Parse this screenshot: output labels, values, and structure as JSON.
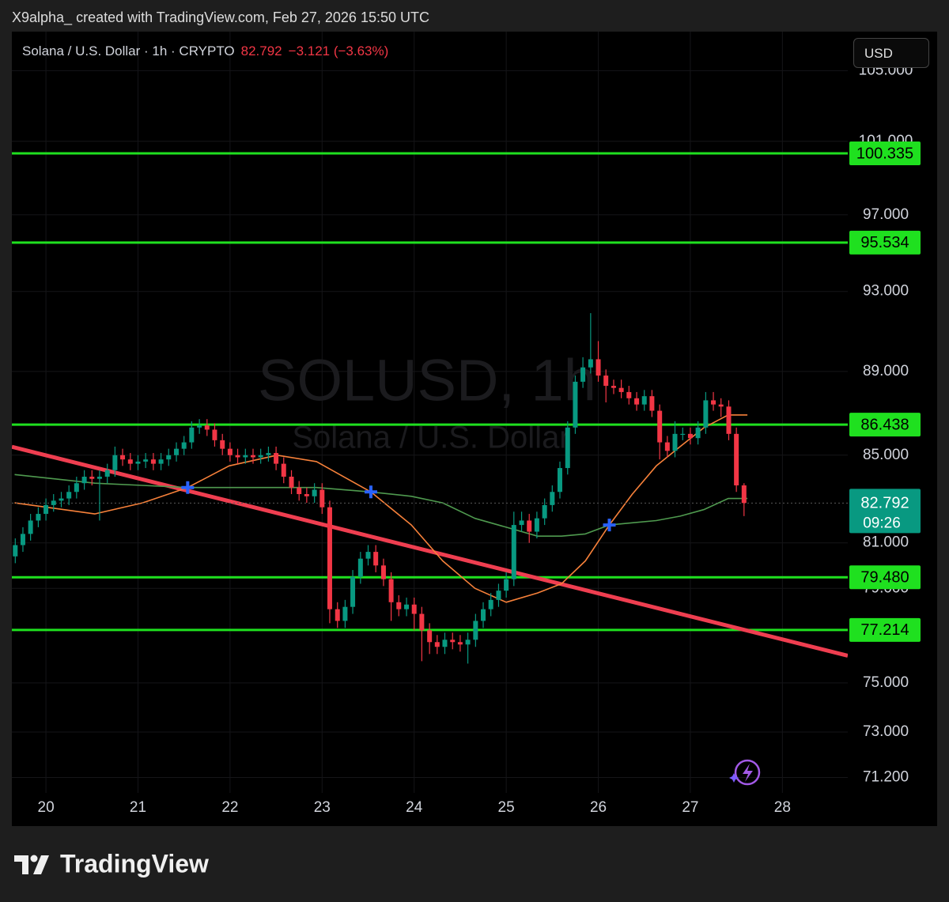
{
  "header": {
    "credit": "X9alpha_ created with TradingView.com, Feb 27, 2026 15:50 UTC"
  },
  "footer": {
    "brand": "TradingView"
  },
  "chart_data": {
    "type": "candlestick",
    "title": "Solana / U.S. Dollar · 1h · CRYPTO",
    "change_text": "−3.121 (−3.63%)",
    "currency": "USD",
    "watermark": "SOLUSD, 1h",
    "watermark_sub": "Solana / U.S. Dollar",
    "countdown": "09:26",
    "up_color": "#089981",
    "down_color": "#f23645",
    "x": [
      19.667,
      19.75,
      19.833,
      19.917,
      20,
      20.083,
      20.167,
      20.25,
      20.333,
      20.417,
      20.5,
      20.583,
      20.667,
      20.75,
      20.833,
      20.917,
      21,
      21.083,
      21.167,
      21.25,
      21.333,
      21.417,
      21.5,
      21.583,
      21.667,
      21.75,
      21.833,
      21.917,
      22,
      22.083,
      22.167,
      22.25,
      22.333,
      22.417,
      22.5,
      22.583,
      22.667,
      22.75,
      22.833,
      22.917,
      23,
      23.083,
      23.167,
      23.25,
      23.333,
      23.417,
      23.5,
      23.583,
      23.667,
      23.75,
      23.833,
      23.917,
      24,
      24.083,
      24.167,
      24.25,
      24.333,
      24.417,
      24.5,
      24.583,
      24.667,
      24.75,
      24.833,
      24.917,
      25,
      25.083,
      25.167,
      25.25,
      25.333,
      25.417,
      25.5,
      25.583,
      25.667,
      25.75,
      25.833,
      25.917,
      26,
      26.083,
      26.167,
      26.25,
      26.333,
      26.417,
      26.5,
      26.583,
      26.667,
      26.75,
      26.833,
      26.917,
      27,
      27.083,
      27.167,
      27.25,
      27.333,
      27.417,
      27.5,
      27.583
    ],
    "open": [
      80.4,
      80.9,
      81.4,
      82.0,
      82.3,
      82.7,
      82.9,
      83.0,
      83.3,
      83.7,
      84.0,
      83.9,
      84.0,
      84.3,
      85.0,
      84.8,
      84.6,
      84.7,
      84.8,
      84.6,
      84.8,
      85.0,
      85.3,
      85.6,
      86.3,
      86.4,
      86.2,
      85.7,
      85.3,
      85.0,
      84.9,
      85.0,
      84.9,
      85.0,
      85.1,
      84.6,
      84.0,
      83.5,
      83.2,
      83.1,
      83.4,
      82.6,
      78.1,
      77.6,
      78.2,
      79.5,
      80.3,
      80.6,
      80.0,
      79.4,
      78.4,
      78.1,
      78.3,
      77.9,
      77.2,
      76.7,
      76.5,
      76.8,
      76.7,
      76.6,
      76.8,
      77.6,
      78.1,
      78.5,
      78.9,
      79.4,
      81.8,
      82.0,
      81.5,
      82.1,
      82.7,
      83.3,
      84.4,
      86.3,
      88.5,
      89.2,
      89.6,
      88.8,
      88.3,
      88.2,
      88.0,
      87.7,
      87.4,
      87.8,
      87.1,
      85.6,
      85.2,
      86.0,
      86.0,
      85.8,
      86.3,
      87.6,
      87.4,
      87.3,
      86.0,
      83.6
    ],
    "high": [
      81.2,
      81.7,
      82.3,
      82.6,
      83.0,
      83.2,
      83.3,
      83.6,
      84.0,
      84.3,
      84.3,
      84.3,
      84.6,
      85.4,
      85.3,
      85.1,
      85.0,
      85.1,
      85.1,
      85.1,
      85.3,
      85.6,
      85.9,
      86.6,
      86.7,
      86.7,
      86.5,
      86.0,
      85.6,
      85.3,
      85.3,
      85.3,
      85.3,
      85.4,
      85.4,
      84.9,
      84.3,
      83.8,
      83.5,
      83.7,
      83.7,
      82.9,
      78.4,
      78.5,
      79.8,
      80.6,
      80.9,
      80.9,
      80.3,
      79.7,
      78.7,
      78.6,
      78.6,
      78.2,
      77.5,
      77.0,
      77.1,
      77.1,
      77.0,
      77.1,
      77.9,
      78.4,
      78.8,
      79.2,
      79.7,
      82.4,
      82.4,
      82.3,
      82.4,
      83.0,
      83.6,
      84.7,
      86.6,
      88.8,
      89.7,
      91.9,
      90.5,
      89.1,
      88.6,
      88.6,
      88.3,
      88.0,
      88.1,
      88.1,
      87.4,
      85.9,
      86.6,
      86.3,
      86.3,
      86.6,
      88.0,
      88.0,
      87.7,
      87.6,
      86.3,
      83.7
    ],
    "low": [
      80.1,
      80.6,
      81.1,
      81.7,
      82.0,
      82.4,
      82.6,
      82.7,
      83.0,
      83.4,
      83.6,
      82.0,
      83.7,
      84.0,
      84.5,
      84.3,
      84.3,
      84.4,
      84.3,
      84.3,
      84.5,
      84.7,
      85.0,
      85.3,
      86.0,
      85.9,
      85.4,
      85.0,
      84.7,
      84.6,
      84.6,
      84.6,
      84.6,
      84.7,
      84.3,
      83.7,
      83.2,
      82.9,
      82.8,
      82.8,
      82.3,
      77.5,
      77.3,
      77.3,
      77.9,
      79.2,
      80.0,
      79.7,
      79.1,
      77.6,
      77.8,
      77.8,
      77.2,
      75.9,
      76.2,
      76.2,
      76.2,
      76.4,
      76.3,
      75.8,
      76.5,
      77.3,
      77.8,
      78.2,
      78.6,
      79.1,
      81.5,
      81.0,
      81.2,
      81.8,
      82.4,
      83.0,
      84.1,
      86.0,
      88.2,
      88.9,
      88.5,
      87.5,
      87.9,
      87.7,
      87.4,
      87.1,
      87.1,
      86.8,
      84.8,
      84.9,
      84.9,
      85.7,
      85.5,
      85.5,
      86.0,
      87.1,
      86.8,
      85.7,
      83.3,
      82.2
    ],
    "close": [
      80.9,
      81.4,
      82.0,
      82.3,
      82.7,
      82.9,
      83.0,
      83.3,
      83.7,
      84.0,
      83.9,
      84.0,
      84.3,
      85.0,
      84.8,
      84.6,
      84.7,
      84.8,
      84.6,
      84.8,
      85.0,
      85.3,
      85.6,
      86.3,
      86.4,
      86.2,
      85.7,
      85.3,
      85.0,
      84.9,
      85.0,
      84.9,
      85.0,
      85.1,
      84.6,
      84.0,
      83.5,
      83.2,
      83.1,
      83.4,
      82.6,
      78.1,
      77.6,
      78.2,
      79.5,
      80.3,
      80.6,
      80.0,
      79.4,
      78.4,
      78.1,
      78.3,
      77.9,
      77.2,
      76.7,
      76.5,
      76.8,
      76.7,
      76.6,
      76.8,
      77.6,
      78.1,
      78.5,
      78.9,
      79.4,
      81.8,
      82.0,
      81.5,
      82.1,
      82.7,
      83.3,
      84.4,
      86.3,
      88.5,
      89.2,
      89.6,
      88.8,
      88.3,
      88.2,
      88.0,
      87.7,
      87.4,
      87.8,
      87.1,
      85.6,
      85.2,
      86.0,
      86.0,
      85.8,
      86.3,
      87.6,
      87.4,
      87.3,
      86.0,
      83.6,
      82.792
    ],
    "xlim": [
      19.63,
      28.71
    ],
    "xticks": [
      20,
      21,
      22,
      23,
      24,
      25,
      26,
      27,
      28
    ],
    "ylim": [
      70.6,
      105.2
    ],
    "log_y": true,
    "yticks": [
      {
        "value": 105,
        "label": "105.000"
      },
      {
        "value": 101,
        "label": "101.000"
      },
      {
        "value": 97,
        "label": "97.000"
      },
      {
        "value": 93,
        "label": "93.000"
      },
      {
        "value": 89,
        "label": "89.000"
      },
      {
        "value": 85,
        "label": "85.000"
      },
      {
        "value": 81,
        "label": "81.000"
      },
      {
        "value": 79,
        "label": "79.000"
      },
      {
        "value": 75,
        "label": "75.000"
      },
      {
        "value": 73,
        "label": "73.000"
      },
      {
        "value": 71.2,
        "label": "71.200"
      }
    ],
    "grid": true,
    "levels": {
      "color": "#1fe01f",
      "values": [
        100.335,
        95.534,
        86.438,
        {
          "value": 79.48,
          "label": "79.480"
        },
        77.214
      ]
    },
    "trendline": {
      "color": "#ef3e50",
      "x": [
        19.63,
        28.71
      ],
      "values": [
        85.39,
        76.13
      ]
    },
    "lines": [
      {
        "color": "#f7813a",
        "x": [
          19.66,
          20.53,
          21.05,
          21.54,
          21.99,
          22.51,
          22.94,
          23.53,
          23.97,
          24.31,
          24.66,
          25.0,
          25.34,
          25.6,
          25.86,
          26.12,
          26.37,
          26.63,
          26.89,
          27.15,
          27.41,
          27.62
        ],
        "values": [
          82.8,
          82.3,
          82.8,
          83.5,
          84.5,
          85.0,
          84.7,
          83.3,
          81.8,
          80.2,
          79.0,
          78.4,
          78.8,
          79.2,
          80.2,
          81.8,
          83.2,
          84.5,
          85.4,
          86.3,
          86.9,
          86.9
        ]
      },
      {
        "color": "#4f9a4f",
        "x": [
          19.66,
          20.53,
          21.05,
          21.54,
          21.99,
          22.51,
          22.94,
          23.53,
          23.97,
          24.31,
          24.66,
          25.0,
          25.34,
          25.6,
          25.86,
          26.12,
          26.37,
          26.63,
          26.89,
          27.15,
          27.41,
          27.62
        ],
        "values": [
          84.1,
          83.7,
          83.6,
          83.5,
          83.5,
          83.5,
          83.5,
          83.3,
          83.1,
          82.8,
          82.1,
          81.7,
          81.3,
          81.3,
          81.4,
          81.8,
          81.9,
          82.0,
          82.2,
          82.5,
          83.0,
          83.0
        ]
      }
    ],
    "signals": {
      "color": "#2962ff",
      "x": [
        21.54,
        23.53,
        26.12
      ],
      "values": [
        83.5,
        83.3,
        81.8
      ]
    }
  }
}
